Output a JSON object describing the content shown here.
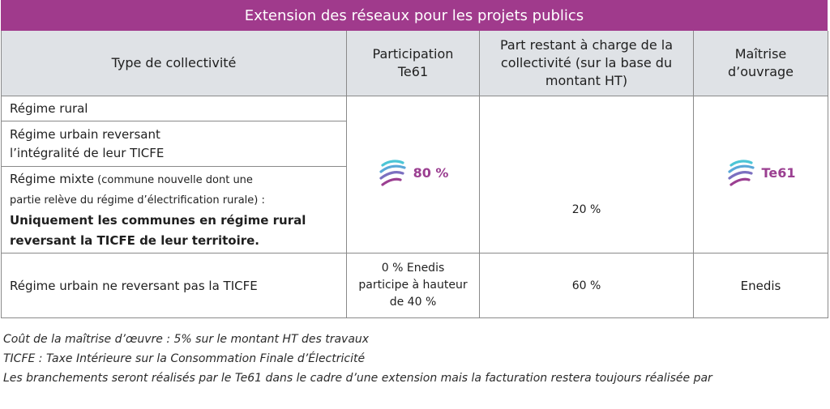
{
  "title": "Extension des réseaux pour les projets publics",
  "headers": {
    "type": "Type de collectivité",
    "participation": "Participation Te61",
    "part_restant": "Part restant à charge de la collectivité (sur la base du montant HT)",
    "maitrise": "Maîtrise d’ouvrage"
  },
  "rows": {
    "rural": "Régime rural",
    "urbain_reversant": [
      "Régime urbain reversant",
      "l’intégralité de leur TICFE"
    ],
    "mixte": {
      "label": "Régime mixte",
      "note_part1": " (commune nouvelle dont une",
      "note_part2": "partie relève du régime d’électrification rurale) :",
      "detail_line1": "Uniquement les communes en régime rural",
      "detail_line2": "reversant la TICFE de leur territoire."
    },
    "urbain_non_reversant": "Régime urbain ne reversant pas la TICFE"
  },
  "group": {
    "participation": "80 %",
    "part_restant": "20 %",
    "maitrise_logo": "Te61",
    "logo_icon": "te61-wave-logo-icon",
    "logo_colors": [
      "#4cc6d6",
      "#9b3f91"
    ]
  },
  "last_row": {
    "participation": [
      "0 % Enedis",
      "participe à hauteur",
      "de 40 %"
    ],
    "part_restant": "60 %",
    "maitrise": "Enedis"
  },
  "notes": [
    "Coût de la maîtrise d’œuvre : 5% sur le montant HT des travaux",
    "TICFE : Taxe Intérieure sur la Consommation Finale d’Électricité",
    "Les branchements seront réalisés par le Te61 dans le cadre d’une extension mais la facturation restera toujours réalisée par"
  ],
  "colors": {
    "title_bg": "#a03a8c",
    "header_bg": "#dfe2e6",
    "accent": "#9b3f91"
  }
}
